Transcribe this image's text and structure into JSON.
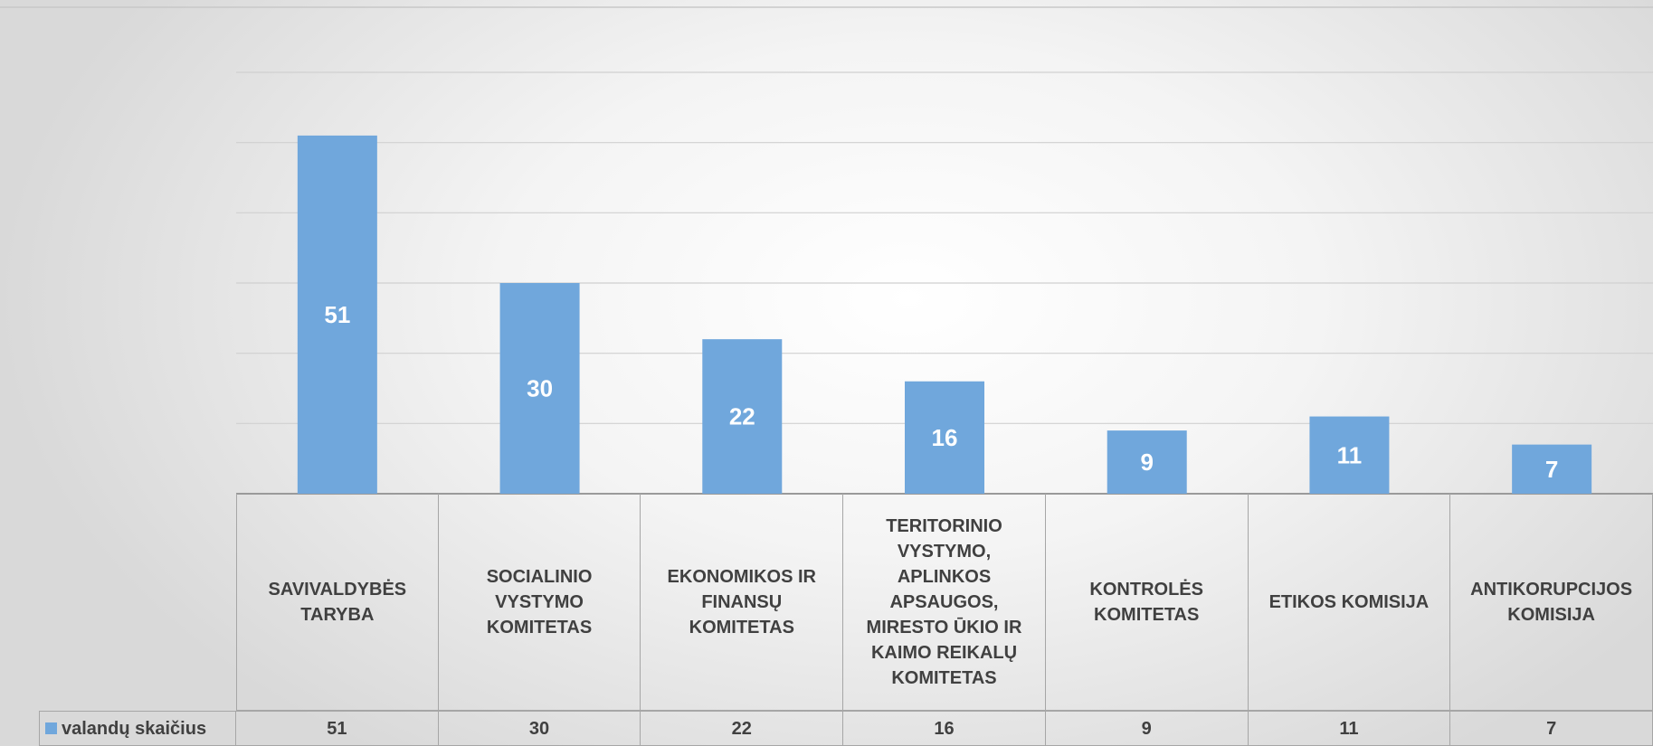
{
  "chart_data": {
    "type": "bar",
    "categories": [
      "SAVIVALDYBĖS TARYBA",
      "SOCIALINIO VYSTYMO KOMITETAS",
      "EKONOMIKOS IR FINANSŲ KOMITETAS",
      "TERITORINIO VYSTYMO, APLINKOS APSAUGOS, MIRESTO ŪKIO IR KAIMO REIKALŲ KOMITETAS",
      "KONTROLĖS KOMITETAS",
      "ETIKOS KOMISIJA",
      "ANTIKORUPCIJOS KOMISIJA"
    ],
    "series": [
      {
        "name": "valandų skaičius",
        "color": "#70a7dc",
        "values": [
          51,
          30,
          22,
          16,
          9,
          11,
          7
        ]
      }
    ],
    "ylim": [
      0,
      60
    ],
    "yticks": [
      0,
      10,
      20,
      30,
      40,
      50,
      60
    ],
    "grid": true,
    "data_table": true
  }
}
